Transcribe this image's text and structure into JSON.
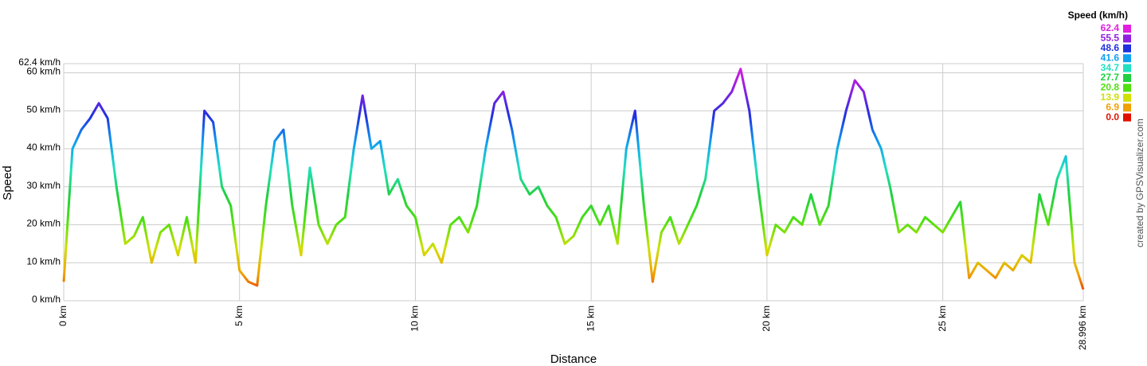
{
  "chart_data": {
    "type": "line",
    "x_label": "Distance",
    "y_label": "Speed",
    "credit": "created by GPSVisualizer.com",
    "x": [
      0,
      0.25,
      0.5,
      0.75,
      1,
      1.25,
      1.5,
      1.75,
      2,
      2.25,
      2.5,
      2.75,
      3,
      3.25,
      3.5,
      3.75,
      4,
      4.25,
      4.5,
      4.75,
      5,
      5.25,
      5.5,
      5.75,
      6,
      6.25,
      6.5,
      6.75,
      7,
      7.25,
      7.5,
      7.75,
      8,
      8.25,
      8.5,
      8.75,
      9,
      9.25,
      9.5,
      9.75,
      10,
      10.25,
      10.5,
      10.75,
      11,
      11.25,
      11.5,
      11.75,
      12,
      12.25,
      12.5,
      12.75,
      13,
      13.25,
      13.5,
      13.75,
      14,
      14.25,
      14.5,
      14.75,
      15,
      15.25,
      15.5,
      15.75,
      16,
      16.25,
      16.5,
      16.75,
      17,
      17.25,
      17.5,
      17.75,
      18,
      18.25,
      18.5,
      18.75,
      19,
      19.25,
      19.5,
      19.75,
      20,
      20.25,
      20.5,
      20.75,
      21,
      21.25,
      21.5,
      21.75,
      22,
      22.25,
      22.5,
      22.75,
      23,
      23.25,
      23.5,
      23.75,
      24,
      24.25,
      24.5,
      24.75,
      25,
      25.25,
      25.5,
      25.75,
      26,
      26.25,
      26.5,
      26.75,
      27,
      27.25,
      27.5,
      27.75,
      28,
      28.25,
      28.5,
      28.75,
      28.996
    ],
    "values": [
      5,
      40,
      45,
      48,
      52,
      48,
      30,
      15,
      17,
      22,
      10,
      18,
      20,
      12,
      22,
      10,
      50,
      47,
      30,
      25,
      8,
      5,
      4,
      25,
      42,
      45,
      25,
      12,
      35,
      20,
      15,
      20,
      22,
      40,
      54,
      40,
      42,
      28,
      32,
      25,
      22,
      12,
      15,
      10,
      20,
      22,
      18,
      25,
      40,
      52,
      55,
      45,
      32,
      28,
      30,
      25,
      22,
      15,
      17,
      22,
      25,
      20,
      25,
      15,
      40,
      50,
      25,
      5,
      18,
      22,
      15,
      20,
      25,
      32,
      50,
      52,
      55,
      61,
      50,
      30,
      12,
      20,
      18,
      22,
      20,
      28,
      20,
      25,
      40,
      50,
      58,
      55,
      45,
      40,
      30,
      18,
      20,
      18,
      22,
      20,
      18,
      22,
      26,
      6,
      10,
      8,
      6,
      10,
      8,
      12,
      10,
      28,
      20,
      32,
      38,
      10,
      3
    ],
    "xlim": [
      0,
      28.996
    ],
    "ylim": [
      0,
      62.4
    ],
    "xticks": [
      {
        "value": 0,
        "label": "0 km"
      },
      {
        "value": 5,
        "label": "5 km"
      },
      {
        "value": 10,
        "label": "10 km"
      },
      {
        "value": 15,
        "label": "15 km"
      },
      {
        "value": 20,
        "label": "20 km"
      },
      {
        "value": 25,
        "label": "25 km"
      },
      {
        "value": 28.996,
        "label": "28.996 km"
      }
    ],
    "yticks": [
      {
        "value": 0,
        "label": "0 km/h"
      },
      {
        "value": 10,
        "label": "10 km/h"
      },
      {
        "value": 20,
        "label": "20 km/h"
      },
      {
        "value": 30,
        "label": "30 km/h"
      },
      {
        "value": 40,
        "label": "40 km/h"
      },
      {
        "value": 50,
        "label": "50 km/h"
      },
      {
        "value": 60,
        "label": "60 km/h"
      },
      {
        "value": 62.4,
        "label": "62.4 km/h"
      }
    ],
    "grid": true,
    "legend": {
      "title": "Speed (km/h)",
      "position": "top-right",
      "items": [
        {
          "value": 62.4,
          "label": "62.4",
          "color": "#e020e0"
        },
        {
          "value": 55.5,
          "label": "55.5",
          "color": "#9020e0"
        },
        {
          "value": 48.6,
          "label": "48.6",
          "color": "#2030e0"
        },
        {
          "value": 41.6,
          "label": "41.6",
          "color": "#10a0f0"
        },
        {
          "value": 34.7,
          "label": "34.7",
          "color": "#20e0c0"
        },
        {
          "value": 27.7,
          "label": "27.7",
          "color": "#20d040"
        },
        {
          "value": 20.8,
          "label": "20.8",
          "color": "#50e010"
        },
        {
          "value": 13.9,
          "label": "13.9",
          "color": "#d0e000"
        },
        {
          "value": 6.9,
          "label": "6.9",
          "color": "#f0a000"
        },
        {
          "value": 0,
          "label": "0.0",
          "color": "#e01000"
        }
      ]
    }
  }
}
